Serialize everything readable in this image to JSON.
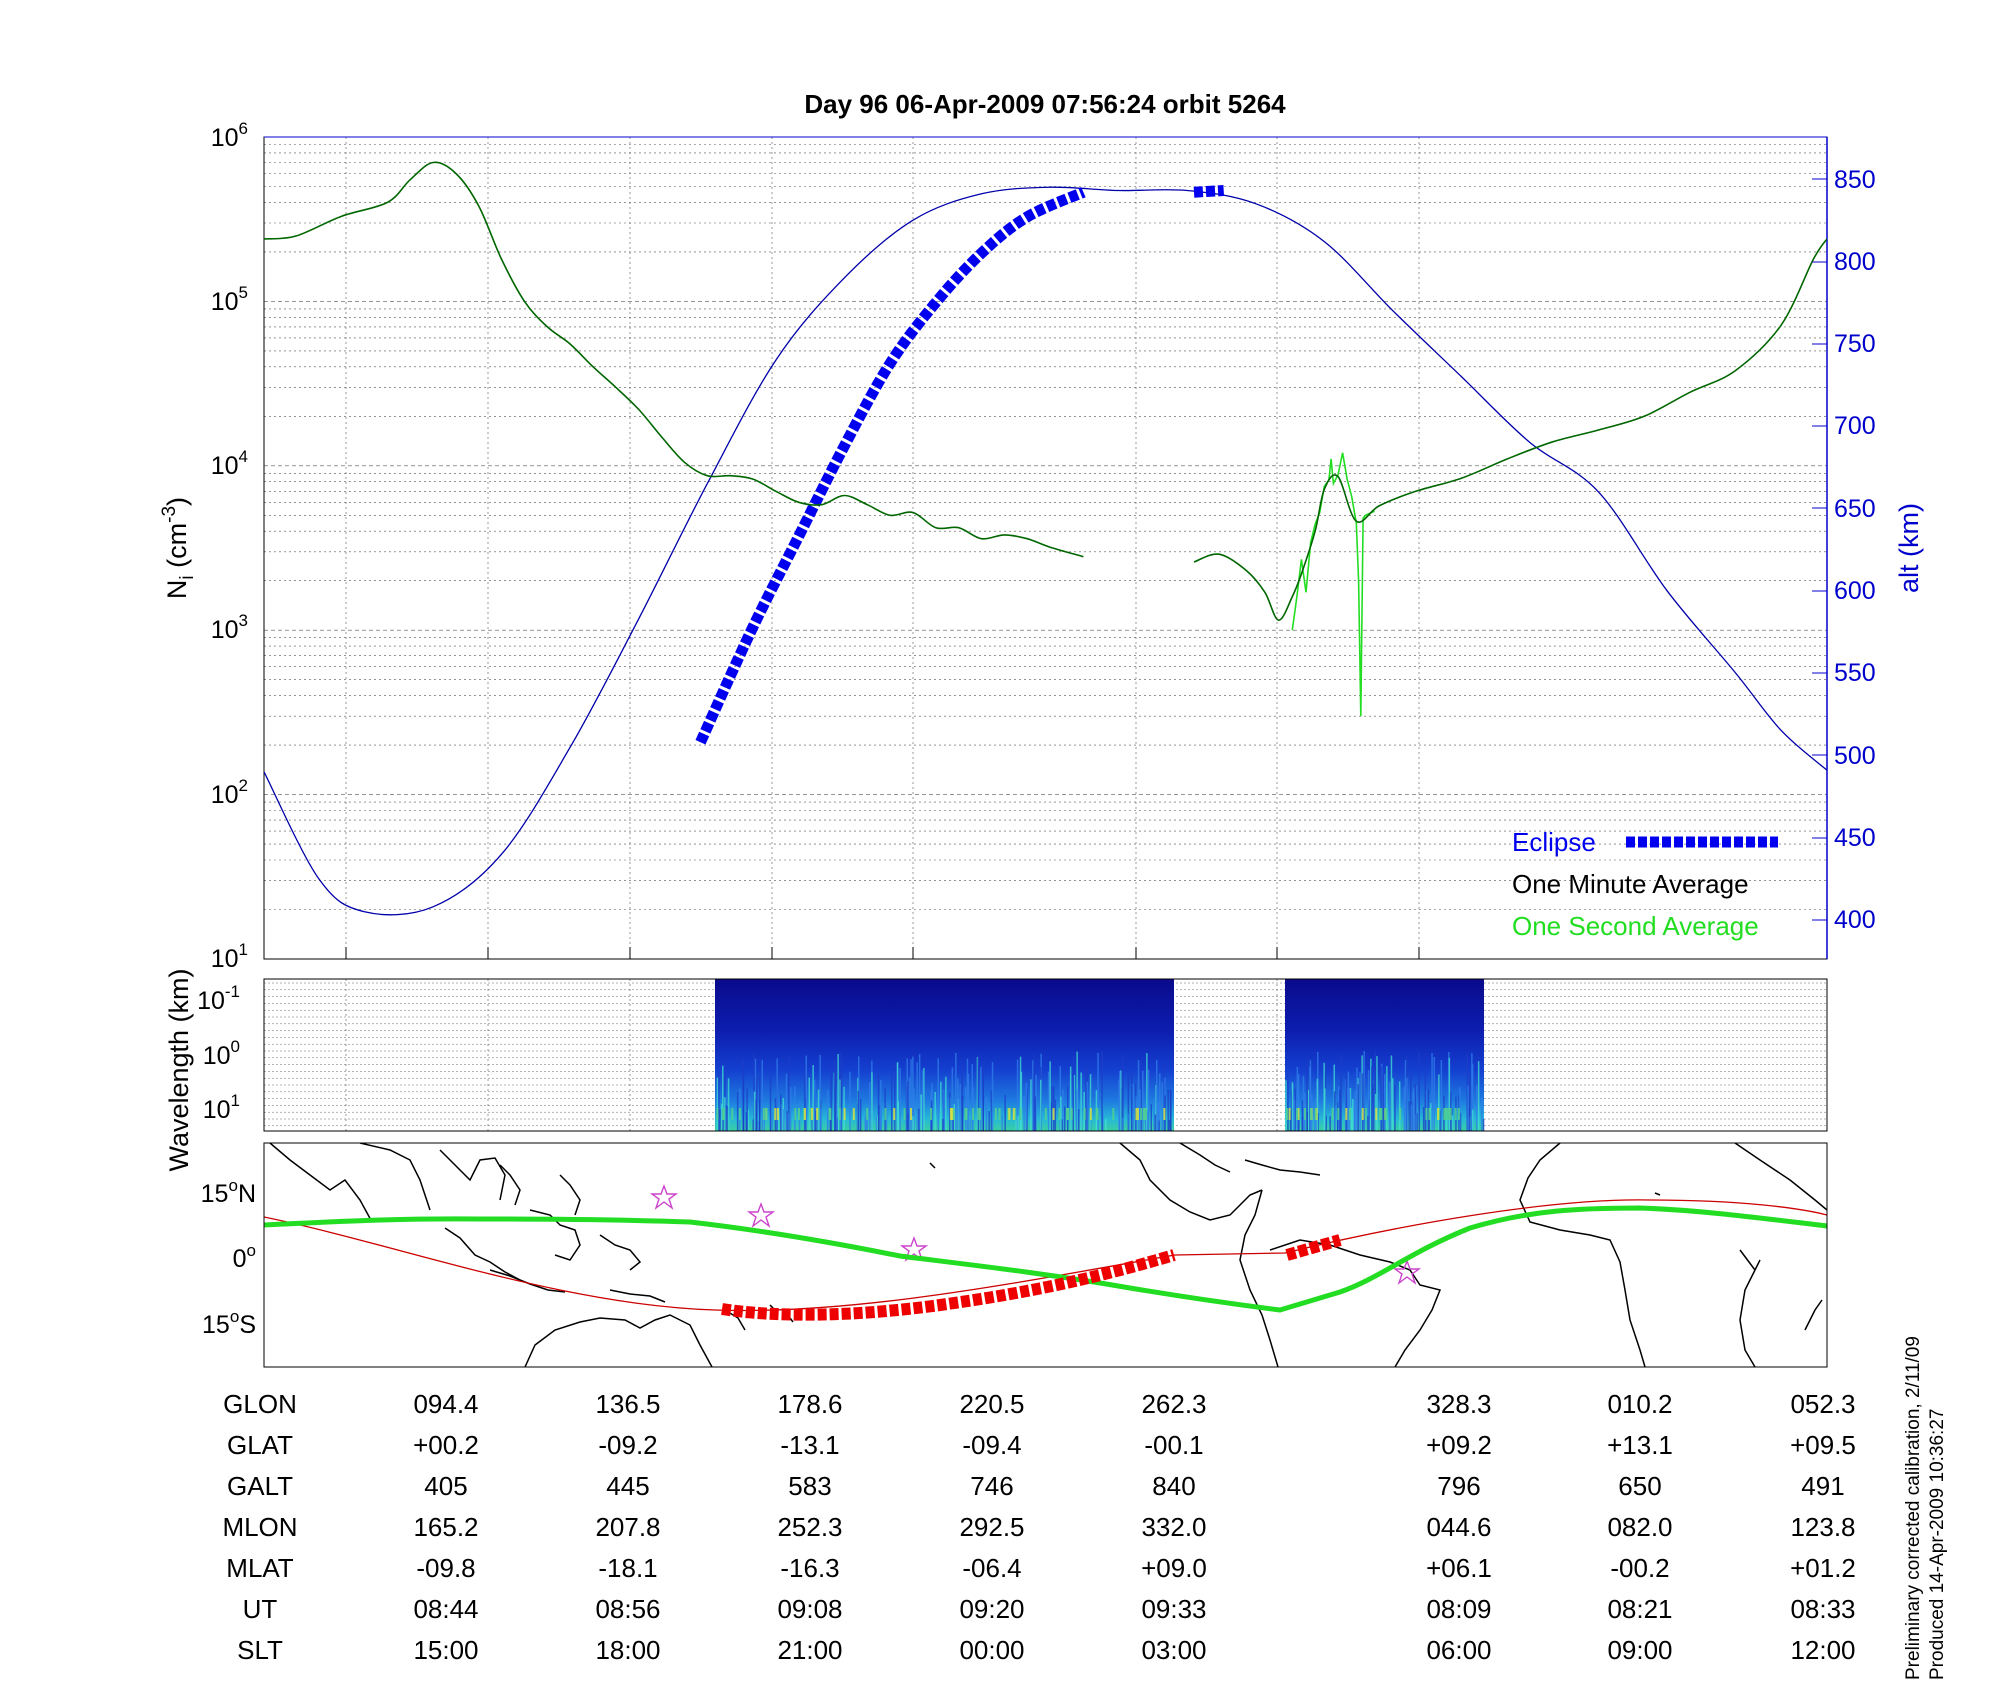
{
  "title": "Day 96  06-Apr-2009 07:56:24   orbit 5264",
  "colors": {
    "one_minute": "#006600",
    "one_second": "#22dd22",
    "eclipse": "#0000ee",
    "altitude": "#0000aa",
    "ground_track": "#22dd22",
    "eclipse_track": "#ee0000",
    "orbit_line": "#cc0000",
    "stars": "#cc44cc"
  },
  "density_panel": {
    "ylabel_main": "N",
    "ylabel_sub": "i",
    "ylabel_unit": "(cm",
    "ylabel_unit_exp": "-3",
    "ylabel_close": ")",
    "y_scale": "log",
    "y_ticks": [
      {
        "base": "10",
        "exp": "1"
      },
      {
        "base": "10",
        "exp": "2"
      },
      {
        "base": "10",
        "exp": "3"
      },
      {
        "base": "10",
        "exp": "4"
      },
      {
        "base": "10",
        "exp": "5"
      },
      {
        "base": "10",
        "exp": "6"
      }
    ],
    "right_ylabel": "alt (km)",
    "right_ticks": [
      "400",
      "450",
      "500",
      "550",
      "600",
      "650",
      "700",
      "750",
      "800",
      "850"
    ],
    "grid": true,
    "legend_position": "lower-right",
    "legend": {
      "eclipse": "Eclipse",
      "one_minute": "One Minute Average",
      "one_second": "One Second Average"
    }
  },
  "wavelength_panel": {
    "ylabel": "Wavelength (km)",
    "y_ticks": [
      {
        "base": "10",
        "exp": "-1"
      },
      {
        "base": "10",
        "exp": "0"
      },
      {
        "base": "10",
        "exp": "1"
      }
    ]
  },
  "map_panel": {
    "lat_ticks": [
      {
        "value": "15",
        "deg": "o",
        "hemi": "N"
      },
      {
        "value": "0",
        "deg": "o",
        "hemi": ""
      },
      {
        "value": "15",
        "deg": "o",
        "hemi": "S"
      }
    ]
  },
  "ephemeris": {
    "labels": [
      "GLON",
      "GLAT",
      "GALT",
      "MLON",
      "MLAT",
      "UT",
      "SLT"
    ],
    "columns": [
      [
        "094.4",
        "+00.2",
        "405",
        "165.2",
        "-09.8",
        "08:44",
        "15:00"
      ],
      [
        "136.5",
        "-09.2",
        "445",
        "207.8",
        "-18.1",
        "08:56",
        "18:00"
      ],
      [
        "178.6",
        "-13.1",
        "583",
        "252.3",
        "-16.3",
        "09:08",
        "21:00"
      ],
      [
        "220.5",
        "-09.4",
        "746",
        "292.5",
        "-06.4",
        "09:20",
        "00:00"
      ],
      [
        "262.3",
        "-00.1",
        "840",
        "332.0",
        "+09.0",
        "09:33",
        "03:00"
      ],
      [
        "328.3",
        "+09.2",
        "796",
        "044.6",
        "+06.1",
        "08:09",
        "06:00"
      ],
      [
        "010.2",
        "+13.1",
        "650",
        "082.0",
        "-00.2",
        "08:21",
        "09:00"
      ],
      [
        "052.3",
        "+09.5",
        "491",
        "123.8",
        "+01.2",
        "08:33",
        "12:00"
      ]
    ]
  },
  "footer": {
    "line1": "Preliminary corrected calibration, 2/11/09",
    "line2": "Produced 14-Apr-2009 10:36:27"
  },
  "chart_data": [
    {
      "type": "line",
      "title": "Day 96  06-Apr-2009 07:56:24   orbit 5264",
      "xlabel": "",
      "ylabel": "Ni (cm-3)",
      "yscale": "log",
      "ylim": [
        10,
        1000000
      ],
      "x_axis": "GLON (deg, unwrapped)",
      "xlim": [
        73,
        415
      ],
      "grid": true,
      "series": [
        {
          "name": "One Minute Average",
          "x": [
            73,
            80,
            90,
            100,
            105,
            110,
            115,
            120,
            125,
            130,
            135,
            140,
            145,
            150,
            155,
            160,
            165,
            170,
            175,
            180,
            185,
            190,
            195,
            200,
            205,
            210,
            215,
            220,
            225,
            230,
            235,
            240,
            245,
            252.3
          ],
          "y": [
            240000,
            250000,
            330000,
            400000,
            550000,
            700000,
            600000,
            380000,
            180000,
            100000,
            70000,
            55000,
            40000,
            30000,
            22000,
            15000,
            10500,
            8700,
            8700,
            8300,
            7000,
            6000,
            5800,
            6600,
            5800,
            5000,
            5200,
            4200,
            4200,
            3600,
            3800,
            3600,
            3200,
            2800
          ]
        },
        {
          "name": "One Minute Average",
          "x": [
            276.5,
            282,
            288,
            292,
            295,
            298,
            300,
            303,
            305,
            308,
            312,
            317,
            325,
            335,
            345,
            355,
            365,
            375,
            385,
            395,
            405,
            412,
            415
          ],
          "y": [
            2600,
            2900,
            2300,
            1700,
            1150,
            1600,
            2200,
            4000,
            7200,
            8600,
            4600,
            5700,
            7000,
            8400,
            11000,
            14000,
            16500,
            20000,
            28000,
            38000,
            72000,
            180000,
            240000
          ]
        },
        {
          "name": "One Second Average",
          "x": [
            298,
            299,
            300,
            301,
            302,
            303,
            304,
            305,
            306,
            306.5,
            307,
            308,
            309,
            310,
            311,
            312,
            312.5,
            313,
            313.5,
            314,
            316
          ],
          "y": [
            1000,
            1600,
            2700,
            1700,
            3400,
            4400,
            5200,
            7500,
            8200,
            11000,
            7800,
            8800,
            12000,
            8300,
            6500,
            4500,
            2000,
            300,
            4800,
            5000,
            5300
          ]
        },
        {
          "name": "Eclipse",
          "x": [
            168.5,
            180,
            190,
            200,
            210,
            220,
            230,
            240,
            252.3,
            276.5,
            283
          ],
          "y": [
            508,
            578,
            633,
            688,
            738,
            775,
            805,
            827,
            842,
            842,
            843
          ],
          "units": "alt (km)"
        },
        {
          "name": "",
          "x": [
            73,
            85,
            95,
            110,
            125,
            140,
            155,
            170,
            185,
            200,
            215,
            230,
            245,
            260,
            275,
            290,
            305,
            320,
            335,
            350,
            365,
            380,
            395,
            405,
            415
          ],
          "y": [
            490,
            425,
            405,
            408,
            440,
            505,
            583,
            665,
            740,
            790,
            825,
            841,
            845,
            843,
            843,
            835,
            812,
            770,
            730,
            690,
            660,
            600,
            550,
            515,
            491
          ],
          "units": "alt (km)"
        }
      ]
    },
    {
      "type": "heatmap",
      "ylabel": "Wavelength (km)",
      "yscale": "log",
      "segments_glon": [
        [
          168.5,
          252.3
        ],
        [
          276.5,
          319
        ]
      ]
    }
  ]
}
